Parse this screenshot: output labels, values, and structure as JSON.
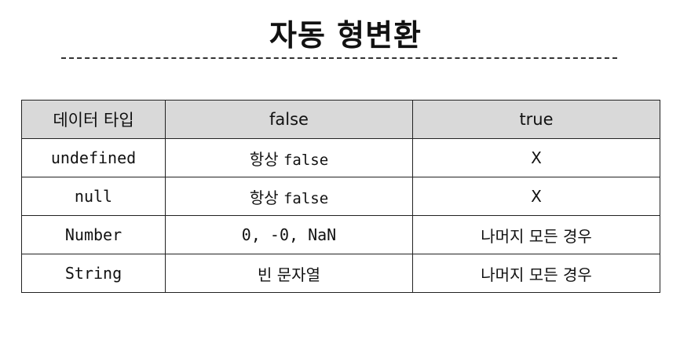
{
  "title": "자동 형변환",
  "table": {
    "headers": [
      "데이터 타입",
      "false",
      "true"
    ],
    "rows": [
      {
        "type": "undefined",
        "false_prefix": "항상",
        "false_value": "false",
        "true": "X"
      },
      {
        "type": "null",
        "false_prefix": "항상",
        "false_value": "false",
        "true": "X"
      },
      {
        "type": "Number",
        "false_prefix": "",
        "false_value": "0, -0, NaN",
        "true": "나머지 모든 경우"
      },
      {
        "type": "String",
        "false_prefix": "빈 문자열",
        "false_value": "",
        "true": "나머지 모든 경우"
      }
    ]
  }
}
